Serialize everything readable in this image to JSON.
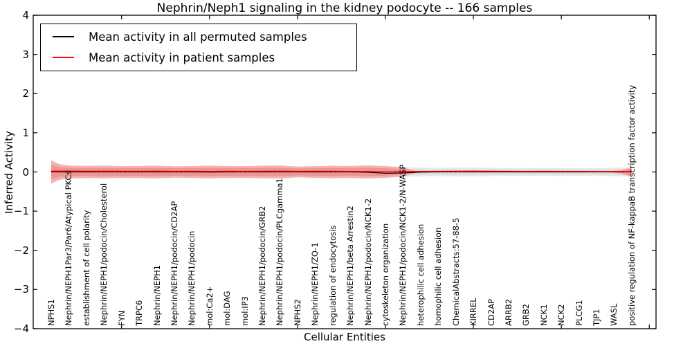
{
  "figure": {
    "title": "Nephrin/Neph1 signaling in the kidney podocyte -- 166 samples",
    "xlabel": "Cellular Entities",
    "ylabel": "Inferred Activity"
  },
  "legend": {
    "items": [
      {
        "label": "Mean activity in all permuted samples",
        "color": "#000000"
      },
      {
        "label": "Mean activity in patient samples",
        "color": "#ff0000"
      }
    ]
  },
  "chart_data": {
    "type": "line",
    "title": "Nephrin/Neph1 signaling in the kidney podocyte -- 166 samples",
    "xlabel": "Cellular Entities",
    "ylabel": "Inferred Activity",
    "ylim": [
      -4,
      4
    ],
    "ytick_values": [
      4,
      3,
      2,
      1,
      0,
      -1,
      -2,
      -3,
      -4
    ],
    "x_minor_tick_indices": [
      5,
      10,
      15,
      20,
      25,
      30,
      35
    ],
    "grid": false,
    "legend_position": "upper-left",
    "categories": [
      "NPHS1",
      "Nephrin/NEPH1Par3/Par6/Atypical PKCs",
      "establishment of cell polarity",
      "Nephrin/NEPH1/podocin/Cholesterol",
      "FYN",
      "TRPC6",
      "Nephrin/NEPH1",
      "Nephrin/NEPH1/podocin/CD2AP",
      "Nephrin/NEPH1/podocin",
      "mol:Ca2+",
      "mol:DAG",
      "mol:IP3",
      "Nephrin/NEPH1/podocin/GRB2",
      "Nephrin/NEPH1/podocin/PLCgamma1",
      "NPHS2",
      "Nephrin/NEPH1/ZO-1",
      "regulation of endocytosis",
      "Nephrin/NEPH1/beta Arrestin2",
      "Nephrin/NEPH1/podocin/NCK1-2",
      "cytoskeleton organization",
      "Nephrin/NEPH1/podocin/NCK1-2/N-WASP",
      "heterophilic cell adhesion",
      "homophilic cell adhesion",
      "ChemicalAbstracts:57-88-5",
      "KIRREL",
      "CD2AP",
      "ARRB2",
      "GRB2",
      "NCK1",
      "NCK2",
      "PLCG1",
      "TJP1",
      "WASL",
      "positive regulation of NF-kappaB transcription factor activity"
    ],
    "series": [
      {
        "name": "Mean activity in all permuted samples",
        "color": "#000000",
        "width": 1.1,
        "values": [
          0,
          0.004,
          0.001,
          0.003,
          0.004,
          0.002,
          0,
          0.003,
          0.001,
          -0.003,
          0,
          0.002,
          0,
          0.003,
          0.001,
          0,
          0.002,
          0.001,
          -0.008,
          -0.035,
          -0.025,
          -0.005,
          0,
          0.002,
          0,
          0.001,
          0,
          0.001,
          0,
          0.001,
          0,
          0.001,
          0,
          0.002
        ]
      },
      {
        "name": "Mean activity in patient samples",
        "color": "#ff0000",
        "width": 1.4,
        "values": [
          0.02,
          0.022,
          0.018,
          0.02,
          0.019,
          0.018,
          0.02,
          0.016,
          0.018,
          0.015,
          0.018,
          0.017,
          0.018,
          0.02,
          0.016,
          0.018,
          0.018,
          0.015,
          0.012,
          0,
          0.008,
          0.014,
          0.016,
          0.018,
          0.02,
          0.018,
          0.016,
          0.015,
          0.016,
          0.015,
          0.014,
          0.013,
          0.012,
          0.01
        ]
      }
    ],
    "reference_line": {
      "y": 0,
      "style": "dashed",
      "color": "#000000"
    },
    "bands": [
      {
        "name": "permuted-samples-std-outer",
        "color": "#e9e9e9",
        "x": [
          1,
          3,
          5,
          7,
          9,
          11,
          13,
          15,
          17,
          18.5,
          19.5,
          20.5,
          21.5,
          22.5,
          24,
          25.5,
          27,
          28.5,
          30,
          31.5,
          33,
          34
        ],
        "half_width": [
          0.115,
          0.1,
          0.1,
          0.1,
          0.1,
          0.105,
          0.105,
          0.095,
          0.1,
          0.115,
          0.13,
          0.135,
          0.12,
          0.105,
          0.115,
          0.11,
          0.1,
          0.097,
          0.1,
          0.096,
          0.108,
          0.118
        ]
      },
      {
        "name": "permuted-samples-std-inner",
        "color": "#dddddd",
        "x": [
          1,
          3,
          5,
          7,
          9,
          11,
          13,
          15,
          17,
          18.5,
          19.5,
          20.5,
          21.5,
          22.5,
          24,
          25.5,
          27,
          28.5,
          30,
          31.5,
          33,
          34
        ],
        "half_width": [
          0.07,
          0.062,
          0.06,
          0.06,
          0.06,
          0.064,
          0.064,
          0.057,
          0.06,
          0.068,
          0.078,
          0.082,
          0.073,
          0.064,
          0.07,
          0.067,
          0.061,
          0.059,
          0.06,
          0.058,
          0.065,
          0.071
        ]
      },
      {
        "name": "patient-samples-std-outer",
        "color": "#f3b3b3",
        "x": [
          1,
          1.45,
          2,
          3,
          4,
          5,
          6,
          7,
          8,
          9,
          10,
          11,
          12,
          13,
          14,
          15,
          16,
          17,
          18,
          19,
          20,
          21,
          21.9
        ],
        "half_width": [
          0.3,
          0.2,
          0.165,
          0.155,
          0.162,
          0.15,
          0.155,
          0.162,
          0.146,
          0.152,
          0.162,
          0.152,
          0.15,
          0.16,
          0.166,
          0.136,
          0.15,
          0.16,
          0.15,
          0.168,
          0.15,
          0.118,
          0.004
        ]
      },
      {
        "name": "patient-samples-std-inner",
        "color": "#ec9595",
        "x": [
          1,
          1.45,
          2,
          3,
          4,
          5,
          6,
          7,
          8,
          9,
          10,
          11,
          12,
          13,
          14,
          15,
          16,
          17,
          18,
          19,
          20,
          21,
          21.9
        ],
        "half_width": [
          0.185,
          0.128,
          0.108,
          0.1,
          0.106,
          0.098,
          0.101,
          0.106,
          0.095,
          0.099,
          0.106,
          0.099,
          0.098,
          0.104,
          0.108,
          0.088,
          0.098,
          0.104,
          0.098,
          0.108,
          0.096,
          0.072,
          0.002
        ]
      },
      {
        "name": "patient-samples-std-outer-right",
        "color": "#f3b3b3",
        "x": [
          32.8,
          33.4,
          34
        ],
        "half_width": [
          0.004,
          0.05,
          0.125
        ]
      },
      {
        "name": "patient-samples-std-inner-right",
        "color": "#ec9595",
        "x": [
          32.8,
          33.4,
          34
        ],
        "half_width": [
          0.002,
          0.03,
          0.078
        ]
      }
    ]
  }
}
